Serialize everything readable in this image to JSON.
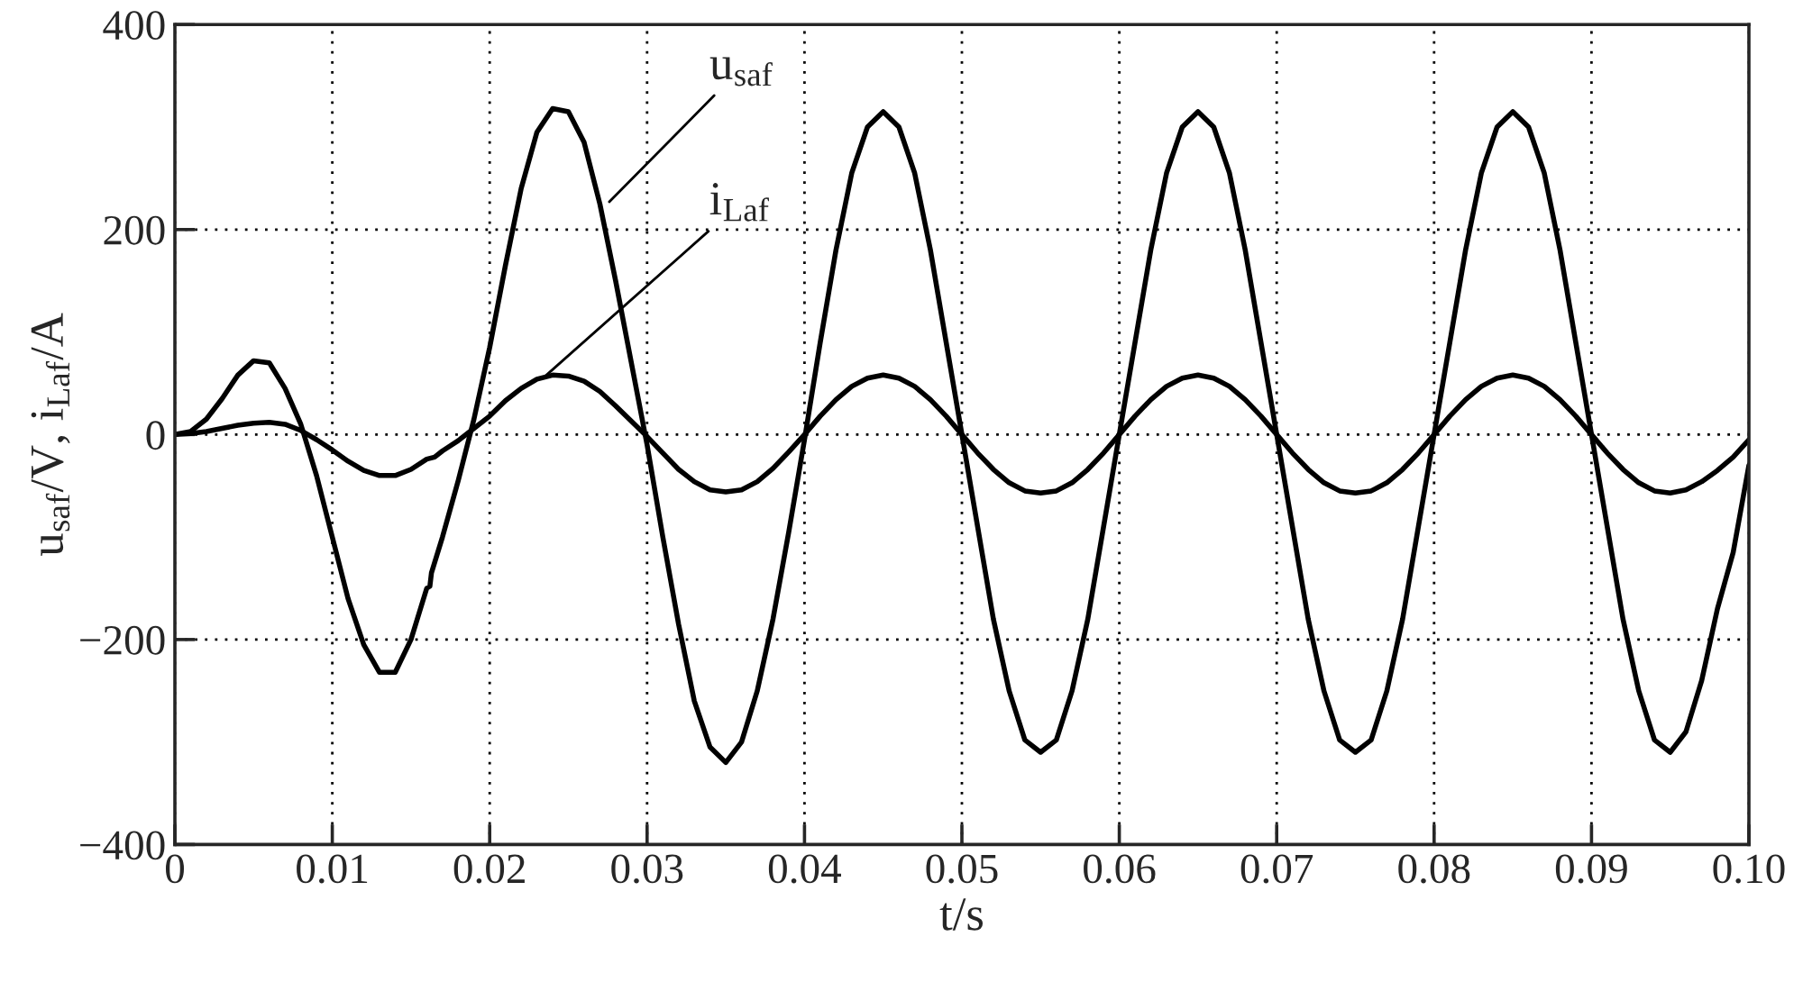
{
  "chart_data": {
    "type": "line",
    "xlabel": "t/s",
    "ylabel": "u$_{saf}$/V, i$_{Laf}$/A",
    "xlim": [
      0,
      0.1
    ],
    "ylim": [
      -400,
      400
    ],
    "xticks": [
      0,
      0.01,
      0.02,
      0.03,
      0.04,
      0.05,
      0.06,
      0.07,
      0.08,
      0.09,
      {
        "value": 0.1,
        "label": "0.10"
      }
    ],
    "yticks": [
      {
        "value": -400,
        "label": "−400"
      },
      {
        "value": -200,
        "label": "−200"
      },
      0,
      200,
      400
    ],
    "grid": true,
    "series": [
      {
        "color": "#000000",
        "x": [
          0,
          0.001,
          0.002,
          0.003,
          0.004,
          0.005,
          0.006,
          0.007,
          0.008,
          0.009,
          0.01,
          0.011,
          0.012,
          0.013,
          0.014,
          0.015,
          0.016,
          0.0162,
          0.0163,
          0.017,
          0.018,
          0.019,
          0.02,
          0.021,
          0.022,
          0.023,
          0.024,
          0.025,
          0.026,
          0.027,
          0.028,
          0.029,
          0.03,
          0.031,
          0.032,
          0.033,
          0.034,
          0.035,
          0.036,
          0.037,
          0.038,
          0.039,
          0.04,
          0.041,
          0.042,
          0.043,
          0.044,
          0.045,
          0.046,
          0.047,
          0.048,
          0.049,
          0.05,
          0.051,
          0.052,
          0.053,
          0.054,
          0.055,
          0.056,
          0.057,
          0.058,
          0.059,
          0.06,
          0.061,
          0.062,
          0.063,
          0.064,
          0.065,
          0.066,
          0.067,
          0.068,
          0.069,
          0.07,
          0.071,
          0.072,
          0.073,
          0.074,
          0.075,
          0.076,
          0.077,
          0.078,
          0.079,
          0.08,
          0.081,
          0.082,
          0.083,
          0.084,
          0.085,
          0.086,
          0.087,
          0.088,
          0.089,
          0.09,
          0.091,
          0.092,
          0.093,
          0.094,
          0.095,
          0.096,
          0.097,
          0.098,
          0.099,
          0.1
        ],
        "values": [
          0,
          3,
          15,
          35,
          58,
          72,
          70,
          45,
          10,
          -40,
          -100,
          -160,
          -205,
          -232,
          -232,
          -200,
          -150,
          -148,
          -135,
          -100,
          -45,
          15,
          85,
          165,
          240,
          295,
          318,
          315,
          285,
          225,
          150,
          70,
          -10,
          -100,
          -185,
          -260,
          -305,
          -320,
          -300,
          -250,
          -180,
          -95,
          -5,
          90,
          180,
          255,
          300,
          315,
          300,
          255,
          180,
          90,
          0,
          -90,
          -180,
          -250,
          -298,
          -310,
          -298,
          -250,
          -180,
          -90,
          0,
          90,
          180,
          255,
          300,
          315,
          300,
          255,
          180,
          90,
          0,
          -90,
          -180,
          -250,
          -298,
          -310,
          -298,
          -250,
          -180,
          -90,
          0,
          90,
          180,
          255,
          300,
          315,
          300,
          255,
          180,
          90,
          0,
          -90,
          -180,
          -250,
          -298,
          -310,
          -290,
          -240,
          -170,
          -115,
          -30
        ]
      },
      {
        "color": "#000000",
        "x": [
          0,
          0.001,
          0.002,
          0.003,
          0.004,
          0.005,
          0.006,
          0.007,
          0.008,
          0.009,
          0.01,
          0.011,
          0.012,
          0.013,
          0.014,
          0.015,
          0.016,
          0.0165,
          0.017,
          0.018,
          0.019,
          0.02,
          0.021,
          0.022,
          0.023,
          0.024,
          0.025,
          0.026,
          0.027,
          0.028,
          0.029,
          0.03,
          0.031,
          0.032,
          0.033,
          0.034,
          0.035,
          0.036,
          0.037,
          0.038,
          0.039,
          0.04,
          0.041,
          0.042,
          0.043,
          0.044,
          0.045,
          0.046,
          0.047,
          0.048,
          0.049,
          0.05,
          0.051,
          0.052,
          0.053,
          0.054,
          0.055,
          0.056,
          0.057,
          0.058,
          0.059,
          0.06,
          0.061,
          0.062,
          0.063,
          0.064,
          0.065,
          0.066,
          0.067,
          0.068,
          0.069,
          0.07,
          0.071,
          0.072,
          0.073,
          0.074,
          0.075,
          0.076,
          0.077,
          0.078,
          0.079,
          0.08,
          0.081,
          0.082,
          0.083,
          0.084,
          0.085,
          0.086,
          0.087,
          0.088,
          0.089,
          0.09,
          0.091,
          0.092,
          0.093,
          0.094,
          0.095,
          0.096,
          0.097,
          0.098,
          0.099,
          0.1
        ],
        "values": [
          0,
          1,
          3,
          6,
          9,
          11,
          12,
          10,
          4,
          -5,
          -15,
          -26,
          -35,
          -40,
          -40,
          -34,
          -24,
          -22,
          -16,
          -6,
          6,
          18,
          33,
          45,
          54,
          58,
          57,
          52,
          42,
          28,
          13,
          -2,
          -18,
          -34,
          -46,
          -54,
          -56,
          -54,
          -46,
          -33,
          -17,
          0,
          18,
          34,
          47,
          55,
          58,
          55,
          47,
          34,
          18,
          0,
          -18,
          -34,
          -47,
          -55,
          -57,
          -55,
          -47,
          -34,
          -18,
          0,
          18,
          34,
          47,
          55,
          58,
          55,
          47,
          34,
          18,
          0,
          -18,
          -34,
          -47,
          -55,
          -57,
          -55,
          -47,
          -34,
          -18,
          0,
          18,
          34,
          47,
          55,
          58,
          55,
          47,
          34,
          18,
          0,
          -18,
          -34,
          -47,
          -55,
          -57,
          -54,
          -46,
          -35,
          -22,
          -5
        ]
      }
    ],
    "annotations": [
      {
        "text": "u$_{saf}$",
        "x": 0.0276,
        "y": 227
      },
      {
        "text": "i$_{Laf}$",
        "x": 0.0236,
        "y": 58
      }
    ]
  }
}
